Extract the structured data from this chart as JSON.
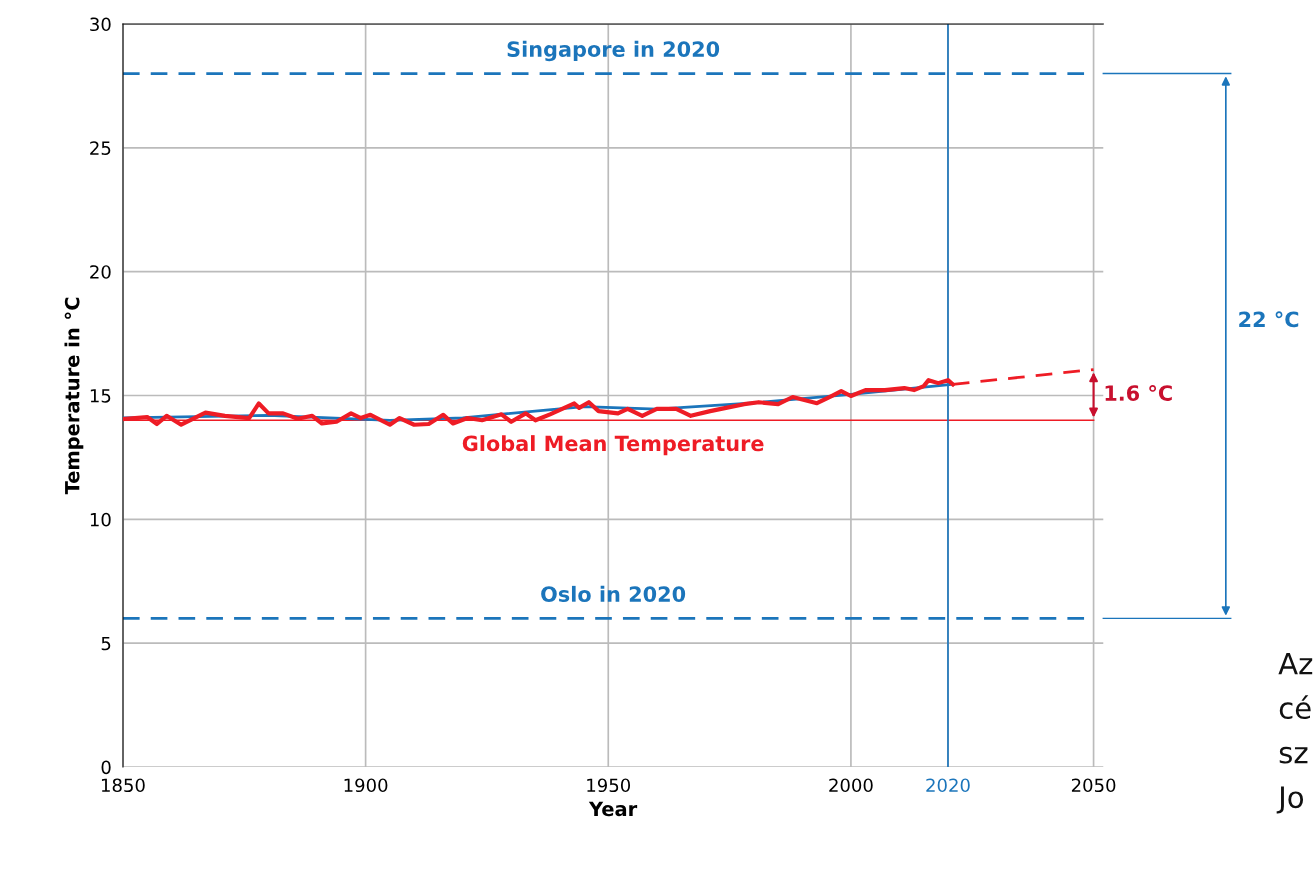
{
  "chart_data": {
    "type": "line",
    "xlabel": "Year",
    "ylabel": "Temperature in °C",
    "xlim": [
      1850,
      2052
    ],
    "ylim": [
      0,
      30
    ],
    "xticks": [
      1850,
      1900,
      1950,
      2000,
      2020,
      2050
    ],
    "yticks": [
      0,
      5,
      10,
      15,
      20,
      25,
      30
    ],
    "grid": true,
    "legend": false,
    "marker": "none",
    "series": [
      {
        "color": "#1b75bb",
        "line_style": "solid",
        "x": [
          1850,
          1880,
          1905,
          1920,
          1945,
          1960,
          1980,
          2000,
          2021
        ],
        "values": [
          14.1,
          14.2,
          14.0,
          14.1,
          14.55,
          14.45,
          14.7,
          15.05,
          15.45
        ]
      },
      {
        "color": "#ee1c25",
        "line_style": "solid",
        "x": [
          1850,
          1855,
          1857,
          1859,
          1862,
          1867,
          1871,
          1876,
          1878,
          1880,
          1883,
          1886,
          1889,
          1891,
          1894,
          1897,
          1899,
          1901,
          1905,
          1907,
          1910,
          1913,
          1916,
          1918,
          1921,
          1924,
          1928,
          1930,
          1933,
          1935,
          1938,
          1943,
          1944,
          1946,
          1948,
          1952,
          1954,
          1957,
          1960,
          1964,
          1967,
          1971,
          1974,
          1978,
          1981,
          1985,
          1988,
          1993,
          1996,
          1998,
          2000,
          2003,
          2007,
          2011,
          2013,
          2015,
          2016,
          2018,
          2020,
          2021
        ],
        "values": [
          14.05,
          14.13,
          13.85,
          14.18,
          13.82,
          14.31,
          14.18,
          14.09,
          14.68,
          14.28,
          14.28,
          14.06,
          14.18,
          13.87,
          13.94,
          14.28,
          14.09,
          14.22,
          13.82,
          14.09,
          13.82,
          13.85,
          14.22,
          13.87,
          14.09,
          14.0,
          14.24,
          13.94,
          14.28,
          14.0,
          14.24,
          14.68,
          14.5,
          14.73,
          14.37,
          14.28,
          14.46,
          14.18,
          14.46,
          14.46,
          14.18,
          14.37,
          14.49,
          14.65,
          14.73,
          14.65,
          14.94,
          14.69,
          14.98,
          15.18,
          14.98,
          15.22,
          15.22,
          15.3,
          15.22,
          15.38,
          15.62,
          15.5,
          15.62,
          15.45
        ]
      },
      {
        "color": "#ee1c25",
        "line_style": "dashed",
        "x": [
          2021,
          2050
        ],
        "values": [
          15.45,
          16.05
        ]
      }
    ],
    "ref_lines": [
      {
        "axis": "y",
        "value": 28,
        "label": "Singapore in 2020",
        "color": "#1b75bb",
        "line_style": "dashed"
      },
      {
        "axis": "y",
        "value": 6,
        "label": "Oslo in 2020",
        "color": "#1b75bb",
        "line_style": "dashed"
      },
      {
        "axis": "y",
        "value": 14,
        "label": "Global Mean Temperature",
        "color": "#ee1c25",
        "line_style": "solid"
      },
      {
        "axis": "x",
        "value": 2020,
        "color": "#1b75bb",
        "line_style": "solid"
      }
    ],
    "annotations": [
      "1.6 °C",
      "22 °C",
      "Az",
      "cé",
      "sz",
      "Jo"
    ]
  }
}
